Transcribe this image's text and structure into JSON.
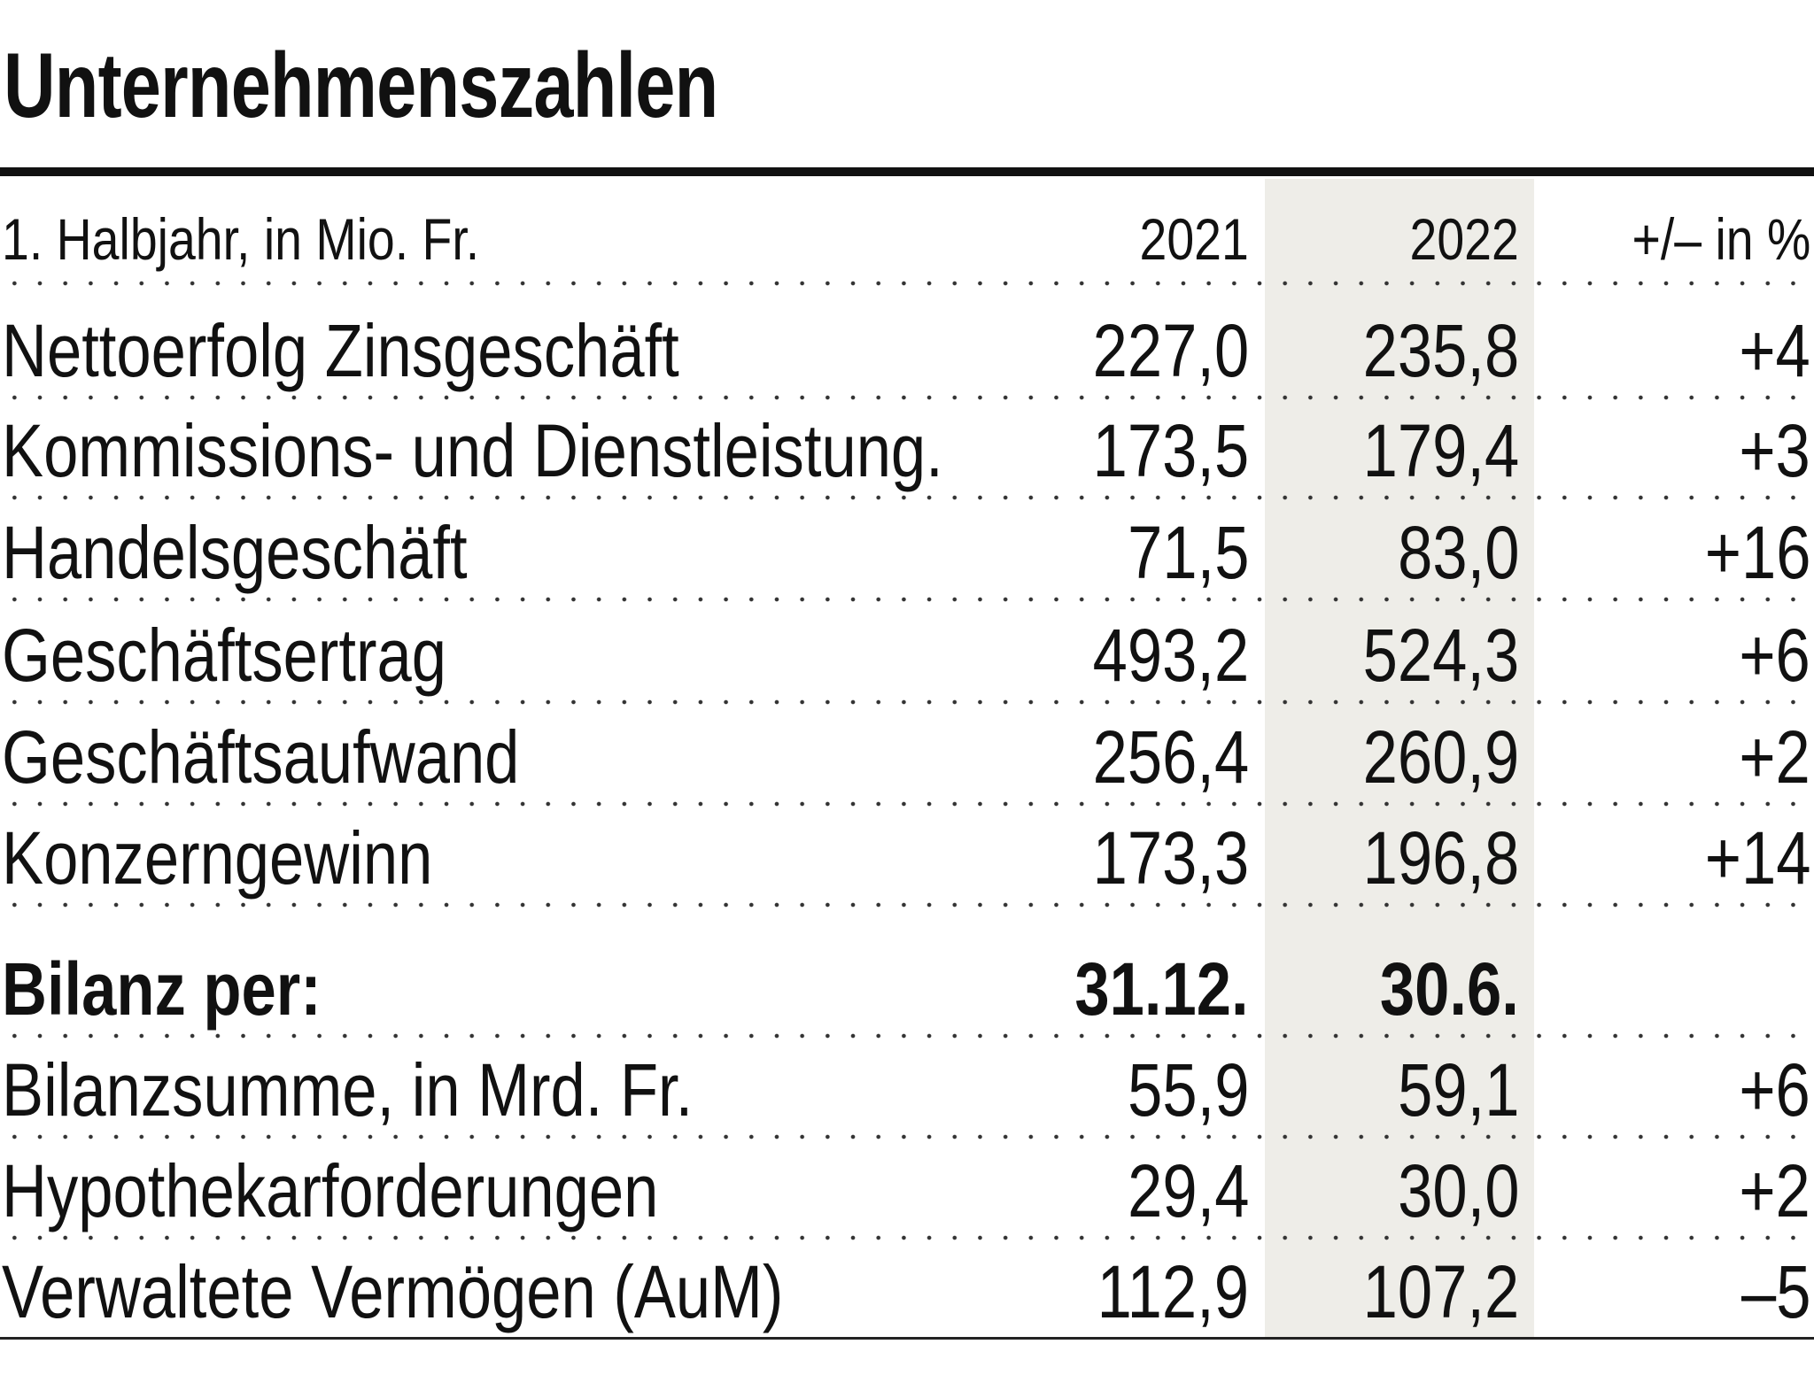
{
  "header": {
    "title": "Unternehmenszahlen"
  },
  "table": {
    "columns": [
      "1. Halbjahr, in Mio. Fr.",
      "2021",
      "2022",
      "+/–  in %"
    ],
    "rows": [
      [
        "Nettoerfolg Zinsgeschäft",
        "227,0",
        "235,8",
        "+4"
      ],
      [
        "Kommissions- und Dienstleistung.",
        "173,5",
        "179,4",
        "+3"
      ],
      [
        "Handelsgeschäft",
        "71,5",
        "83,0",
        "+16"
      ],
      [
        "Geschäftsertrag",
        "493,2",
        "524,3",
        "+6"
      ],
      [
        "Geschäftsaufwand",
        "256,4",
        "260,9",
        "+2"
      ],
      [
        "Konzerngewinn",
        "173,3",
        "196,8",
        "+14"
      ]
    ],
    "balance_header": [
      "Bilanz per:",
      "31.12.",
      "30.6."
    ],
    "balance_rows": [
      [
        "Bilanzsumme, in Mrd. Fr.",
        "55,9",
        "59,1",
        "+6"
      ],
      [
        "Hypothekarforderungen",
        "29,4",
        "30,0",
        "+2"
      ],
      [
        "Verwaltete Vermögen (AuM)",
        "112,9",
        "107,2",
        "–5"
      ]
    ]
  }
}
